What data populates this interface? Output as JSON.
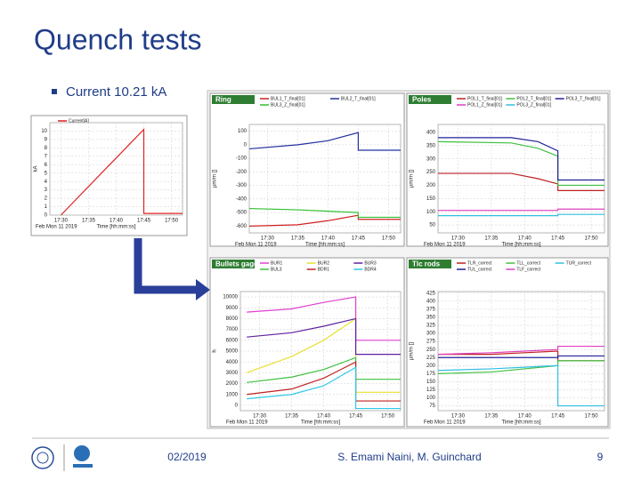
{
  "title": "Quench tests",
  "bullet": "Current 10.21 kA",
  "footer": {
    "date": "02/2019",
    "authors": "S. Emami Naini, M. Guinchard",
    "page": "9"
  },
  "chart_data": [
    {
      "type": "line",
      "date_label": "Feb Mon 11 2019",
      "x_label": "Time [hh:mm:ss]",
      "y_label": "kA",
      "x": [
        "17:30",
        "17:45",
        "17:45",
        "17:52"
      ],
      "xlim": [
        "17:28",
        "17:52"
      ],
      "xticks": [
        "17:30",
        "17:35",
        "17:40",
        "17:45",
        "17:50"
      ],
      "ylim": [
        0,
        11
      ],
      "yticks": [
        0,
        1,
        2,
        3,
        4,
        5,
        6,
        7,
        8,
        9,
        10
      ],
      "grid": true,
      "series": [
        {
          "name": "Current[A]",
          "color": "#e02020",
          "values": [
            0,
            10.2,
            0.2,
            0.2
          ]
        }
      ]
    },
    {
      "type": "line",
      "title": "Ring",
      "date_label": "Feb Mon 11 2019",
      "x_label": "Time [hh:mm:ss]",
      "y_label": "µm/m []",
      "x": [
        "17:27",
        "17:35",
        "17:40",
        "17:45",
        "17:45",
        "17:52"
      ],
      "xlim": [
        "17:27",
        "17:52"
      ],
      "xticks": [
        "17:30",
        "17:35",
        "17:40",
        "17:45",
        "17:50"
      ],
      "ylim": [
        -650,
        150
      ],
      "yticks": [
        100,
        0,
        -100,
        -200,
        -300,
        -400,
        -500,
        -600
      ],
      "grid": true,
      "series": [
        {
          "name": "BUL1_T_final[01]",
          "color": "#d02020",
          "values": [
            -600,
            -590,
            -560,
            -520,
            -550,
            -550
          ]
        },
        {
          "name": "BUL2_T_final[01]",
          "color": "#2030a0",
          "values": [
            -30,
            0,
            30,
            90,
            -40,
            -40
          ]
        },
        {
          "name": "BUL3_Z_final[01]",
          "color": "#30c030",
          "values": [
            -470,
            -480,
            -490,
            -500,
            -535,
            -535
          ]
        }
      ]
    },
    {
      "type": "line",
      "title": "Poles",
      "date_label": "Feb Mon 11 2019",
      "x_label": "Time [hh:mm:ss]",
      "y_label": "µm/m []",
      "x": [
        "17:27",
        "17:38",
        "17:42",
        "17:45",
        "17:45",
        "17:52"
      ],
      "xlim": [
        "17:27",
        "17:52"
      ],
      "xticks": [
        "17:30",
        "17:35",
        "17:40",
        "17:45",
        "17:50"
      ],
      "ylim": [
        20,
        430
      ],
      "yticks": [
        50,
        100,
        150,
        200,
        250,
        300,
        350,
        400
      ],
      "grid": true,
      "series": [
        {
          "name": "POL1_T_final[01]",
          "color": "#c02020",
          "values": [
            245,
            245,
            225,
            205,
            180,
            180
          ]
        },
        {
          "name": "POL2_T_final[01]",
          "color": "#40c040",
          "values": [
            365,
            360,
            340,
            310,
            200,
            200
          ]
        },
        {
          "name": "POL3_T_final[01]",
          "color": "#20209a",
          "values": [
            380,
            380,
            365,
            330,
            220,
            220
          ]
        },
        {
          "name": "POL1_Z_final[01]",
          "color": "#e040c0",
          "values": [
            105,
            105,
            105,
            105,
            110,
            110
          ]
        },
        {
          "name": "POL3_Z_final[01]",
          "color": "#30c0e0",
          "values": [
            85,
            85,
            85,
            85,
            90,
            90
          ]
        }
      ]
    },
    {
      "type": "line",
      "title": "Bullets gages",
      "date_label": "Feb Mon 11 2019",
      "x_label": "Time [hh:mm:ss]",
      "y_label": "h",
      "x": [
        "17:28",
        "17:35",
        "17:40",
        "17:45",
        "17:45",
        "17:52"
      ],
      "xlim": [
        "17:27",
        "17:52"
      ],
      "xticks": [
        "17:30",
        "17:35",
        "17:40",
        "17:45",
        "17:50"
      ],
      "ylim": [
        -500,
        10500
      ],
      "yticks": [
        0,
        1000,
        2000,
        3000,
        4000,
        5000,
        6000,
        7000,
        8000,
        9000,
        10000
      ],
      "grid": true,
      "series": [
        {
          "name": "BUR1",
          "color": "#e040d0",
          "values": [
            8600,
            8900,
            9500,
            10000,
            6000,
            6000
          ]
        },
        {
          "name": "BUR2",
          "color": "#e8e030",
          "values": [
            3000,
            4500,
            6000,
            8000,
            1200,
            1200
          ]
        },
        {
          "name": "BUR3",
          "color": "#6020a0",
          "values": [
            6300,
            6700,
            7300,
            8000,
            4700,
            4700
          ]
        },
        {
          "name": "BUL3",
          "color": "#40c040",
          "values": [
            2100,
            2600,
            3300,
            4400,
            2400,
            2400
          ]
        },
        {
          "name": "BDR1",
          "color": "#c02020",
          "values": [
            1000,
            1500,
            2500,
            4000,
            400,
            400
          ]
        },
        {
          "name": "BDR4",
          "color": "#30c8e8",
          "values": [
            600,
            1000,
            1800,
            3500,
            -300,
            -300
          ]
        }
      ]
    },
    {
      "type": "line",
      "title": "Tlc rods",
      "date_label": "Feb Mon 11 2019",
      "x_label": "Time [hh:mm:ss]",
      "y_label": "µm/m []",
      "x": [
        "17:27",
        "17:35",
        "17:40",
        "17:45",
        "17:45",
        "17:52"
      ],
      "xlim": [
        "17:27",
        "17:52"
      ],
      "xticks": [
        "17:30",
        "17:35",
        "17:40",
        "17:45",
        "17:50"
      ],
      "ylim": [
        60,
        430
      ],
      "yticks": [
        75,
        100,
        125,
        150,
        175,
        200,
        225,
        250,
        275,
        300,
        325,
        350,
        375,
        400,
        425
      ],
      "grid": true,
      "series": [
        {
          "name": "TLR_correct",
          "color": "#c02020",
          "values": [
            235,
            235,
            240,
            245,
            215,
            215
          ]
        },
        {
          "name": "TLL_correct",
          "color": "#40c040",
          "values": [
            175,
            180,
            190,
            200,
            215,
            215
          ]
        },
        {
          "name": "TUR_correct",
          "color": "#30c0e0",
          "values": [
            185,
            190,
            195,
            200,
            75,
            75
          ]
        },
        {
          "name": "TUL_correct",
          "color": "#20209a",
          "values": [
            225,
            225,
            225,
            225,
            230,
            230
          ]
        },
        {
          "name": "TLF_correct",
          "color": "#e040c0",
          "values": [
            235,
            240,
            245,
            250,
            260,
            260
          ]
        }
      ]
    }
  ]
}
